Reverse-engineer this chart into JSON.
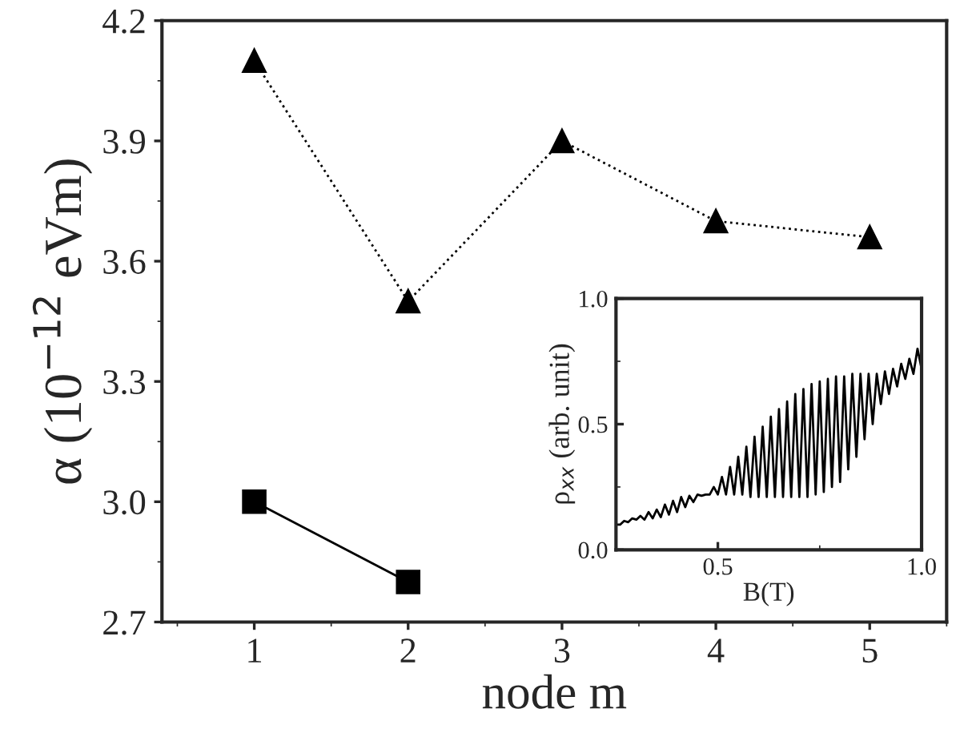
{
  "chart_data": [
    {
      "type": "line",
      "xlabel": "node m",
      "ylabel": "α (10$^{−12}$ eVm)",
      "xlim": [
        0.4,
        5.5
      ],
      "xticks": [
        1,
        2,
        3,
        4,
        5
      ],
      "ylim": [
        2.7,
        4.2
      ],
      "yticks": [
        {
          "value": 2.7,
          "label": "2.7"
        },
        {
          "value": 3.0,
          "label": "3.0"
        },
        3.3,
        3.6,
        3.9,
        4.2
      ],
      "grid": false,
      "legend": false,
      "series": [
        {
          "x": [
            1,
            2,
            3,
            4,
            5
          ],
          "values": [
            4.1,
            3.5,
            3.9,
            3.7,
            3.66
          ],
          "color": "#000000",
          "marker": "triangle",
          "line_style": "dotted"
        },
        {
          "x": [
            1,
            2
          ],
          "values": [
            3.0,
            2.8
          ],
          "color": "#000000",
          "marker": "square",
          "line_style": "solid"
        }
      ]
    },
    {
      "type": "line",
      "xlabel": "B(T)",
      "ylabel": "ρ$_{xx}$ (arb. unit)",
      "xlim": [
        0.25,
        1.0
      ],
      "xticks": [
        {
          "value": 0.5,
          "label": "0.5"
        },
        {
          "value": 1.0,
          "label": "1.0"
        }
      ],
      "ylim": [
        0,
        1.0
      ],
      "yticks": [
        {
          "value": 0,
          "label": "0.0"
        },
        {
          "value": 0.5,
          "label": "0.5"
        },
        {
          "value": 1.0,
          "label": "1.0"
        }
      ],
      "grid": false,
      "legend": false,
      "marker": "none",
      "series": [
        {
          "color": "#000000",
          "line_style": "solid",
          "x": [
            0.25,
            0.26,
            0.27,
            0.28,
            0.29,
            0.3,
            0.31,
            0.32,
            0.33,
            0.34,
            0.35,
            0.36,
            0.37,
            0.38,
            0.39,
            0.4,
            0.41,
            0.42,
            0.43,
            0.44,
            0.45,
            0.46,
            0.47,
            0.48,
            0.49,
            0.5,
            0.51,
            0.52,
            0.53,
            0.54,
            0.55,
            0.56,
            0.57,
            0.58,
            0.59,
            0.6,
            0.61,
            0.62,
            0.63,
            0.64,
            0.65,
            0.66,
            0.67,
            0.68,
            0.69,
            0.7,
            0.71,
            0.72,
            0.73,
            0.74,
            0.75,
            0.76,
            0.77,
            0.78,
            0.79,
            0.8,
            0.81,
            0.82,
            0.83,
            0.84,
            0.85,
            0.86,
            0.87,
            0.88,
            0.89,
            0.9,
            0.91,
            0.92,
            0.93,
            0.94,
            0.95,
            0.96,
            0.97,
            0.98,
            0.99,
            1.0
          ],
          "values": [
            0.1,
            0.1,
            0.115,
            0.11,
            0.125,
            0.12,
            0.135,
            0.12,
            0.15,
            0.125,
            0.16,
            0.13,
            0.18,
            0.14,
            0.195,
            0.15,
            0.21,
            0.17,
            0.215,
            0.19,
            0.22,
            0.215,
            0.22,
            0.22,
            0.25,
            0.22,
            0.29,
            0.22,
            0.33,
            0.22,
            0.37,
            0.22,
            0.41,
            0.21,
            0.45,
            0.21,
            0.49,
            0.21,
            0.53,
            0.21,
            0.56,
            0.21,
            0.59,
            0.21,
            0.62,
            0.21,
            0.64,
            0.21,
            0.66,
            0.22,
            0.67,
            0.23,
            0.68,
            0.25,
            0.69,
            0.27,
            0.69,
            0.32,
            0.7,
            0.37,
            0.7,
            0.44,
            0.7,
            0.5,
            0.7,
            0.58,
            0.71,
            0.62,
            0.72,
            0.65,
            0.74,
            0.68,
            0.76,
            0.7,
            0.8,
            0.72
          ]
        }
      ]
    }
  ]
}
